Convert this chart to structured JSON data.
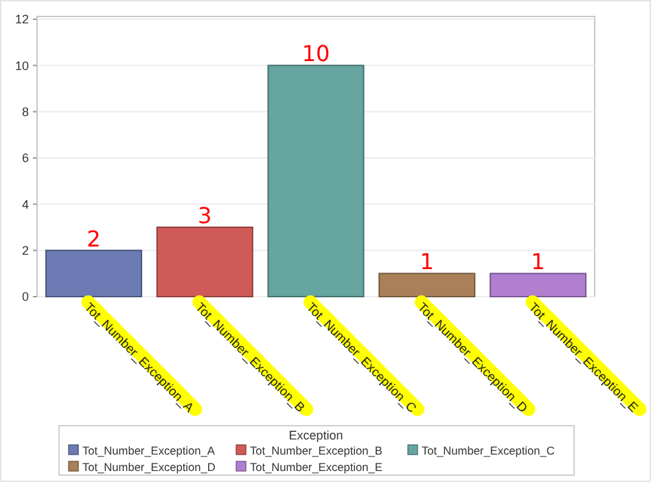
{
  "chart_data": {
    "type": "bar",
    "stacked": true,
    "categories": [
      "Tot_Number_Exception_A",
      "Tot_Number_Exception_B",
      "Tot_Number_Exception_C",
      "Tot_Number_Exception_D",
      "Tot_Number_Exception_E"
    ],
    "series": [
      {
        "name": "Tot_Number_Exception_A",
        "color": "#6c7bb4",
        "values": [
          2,
          null,
          null,
          null,
          null
        ]
      },
      {
        "name": "Tot_Number_Exception_B",
        "color": "#d05a57",
        "values": [
          null,
          3,
          null,
          null,
          null
        ]
      },
      {
        "name": "Tot_Number_Exception_C",
        "color": "#66a5a0",
        "values": [
          null,
          null,
          10,
          null,
          null
        ]
      },
      {
        "name": "Tot_Number_Exception_D",
        "color": "#a98058",
        "values": [
          null,
          null,
          null,
          1,
          null
        ]
      },
      {
        "name": "Tot_Number_Exception_E",
        "color": "#b07fd0",
        "values": [
          null,
          null,
          null,
          null,
          1
        ]
      }
    ],
    "ylim": [
      0,
      12
    ],
    "yticks": [
      0,
      2,
      4,
      6,
      8,
      10,
      12
    ],
    "grid": "y",
    "data_labels": true,
    "legend": "bottom",
    "legend_title": "Exception"
  }
}
